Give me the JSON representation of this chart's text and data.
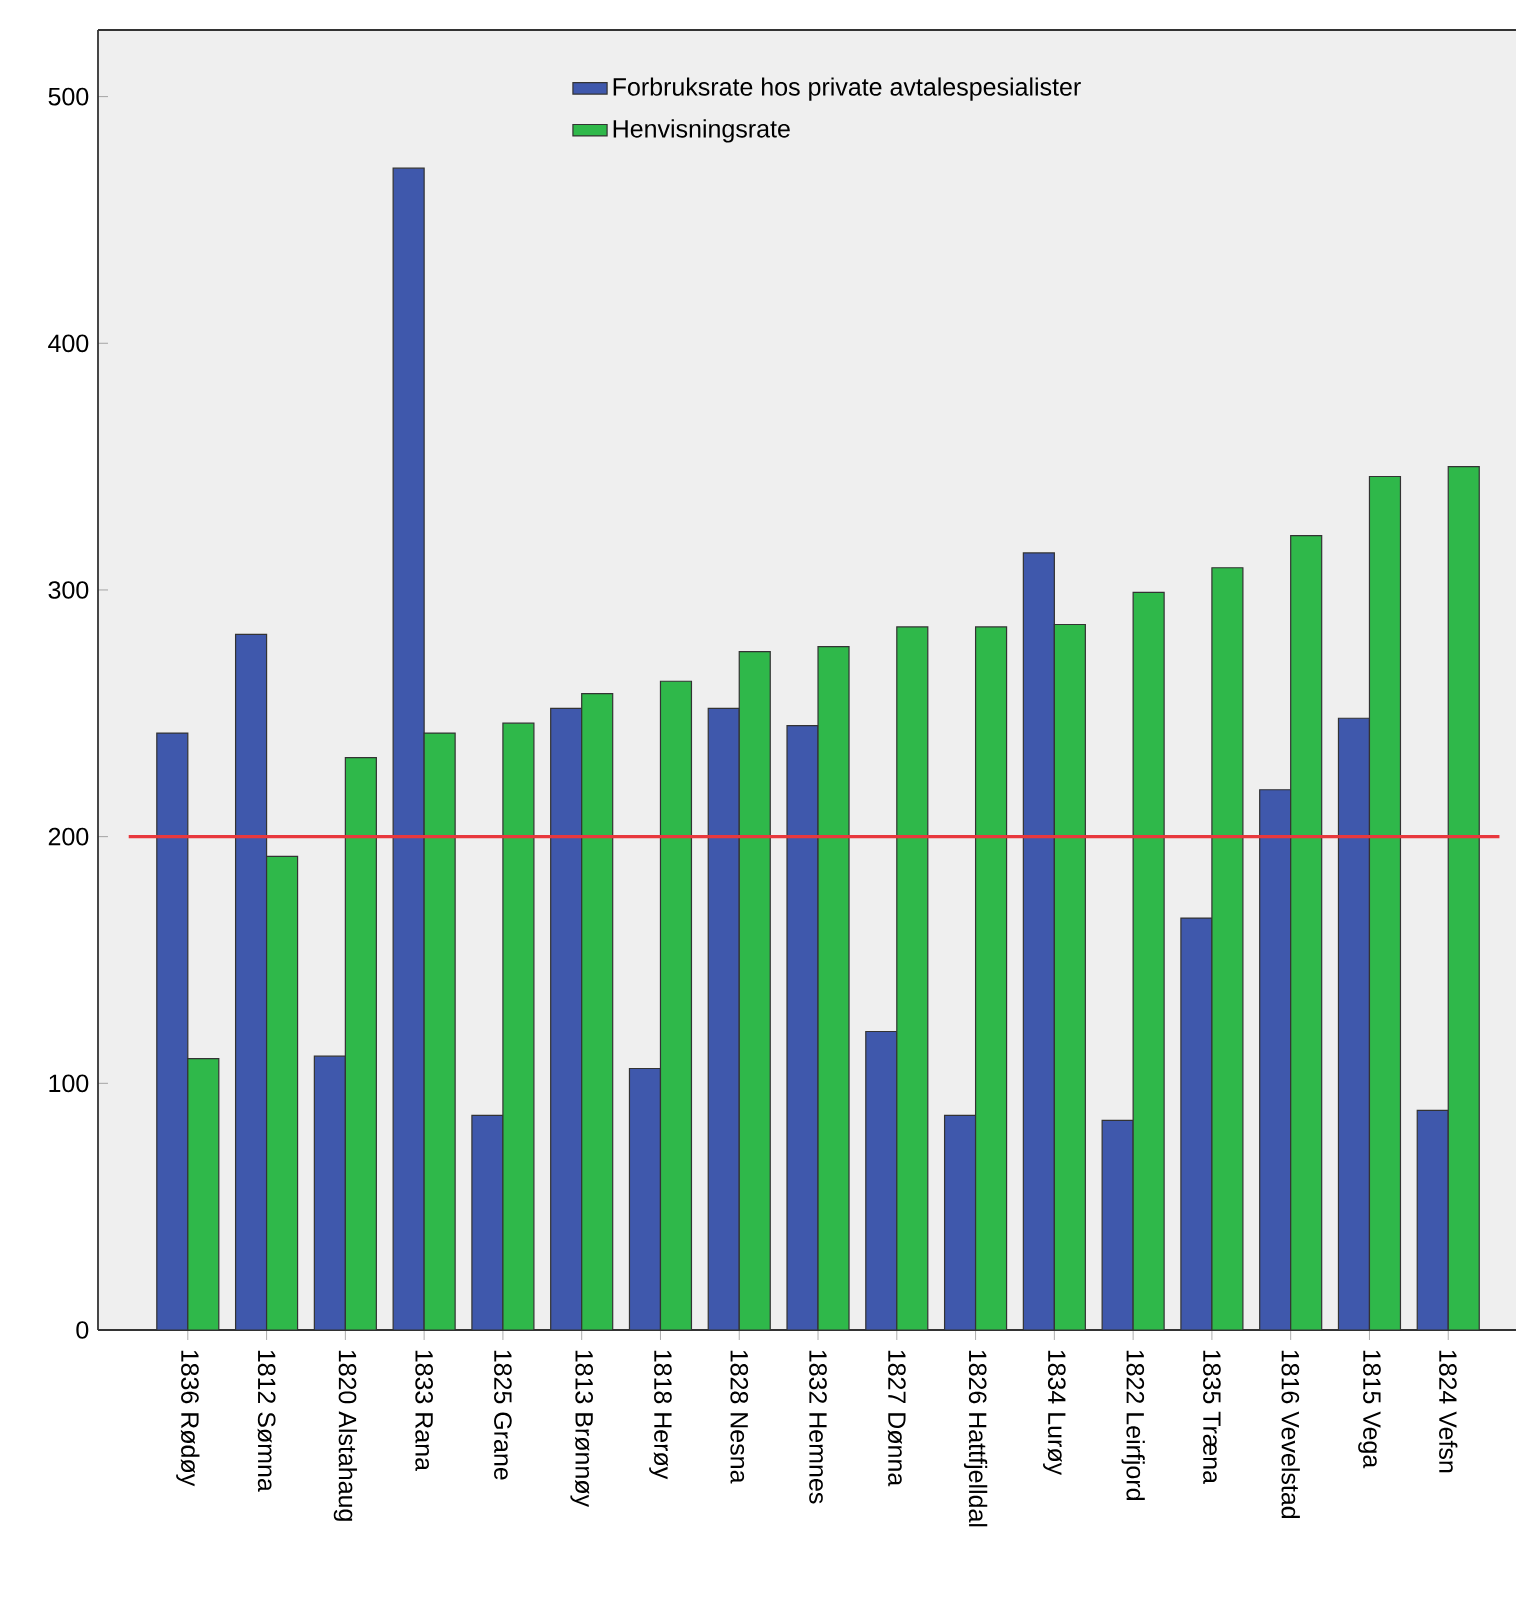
{
  "chart_data": {
    "type": "bar",
    "categories": [
      "1836 Rødøy",
      "1812 Sømna",
      "1820 Alstahaug",
      "1833 Rana",
      "1825 Grane",
      "1813 Brønnøy",
      "1818 Herøy",
      "1828 Nesna",
      "1832 Hemnes",
      "1827 Dønna",
      "1826 Hattfjelldal",
      "1834 Lurøy",
      "1822 Leirfjord",
      "1835 Træna",
      "1816 Vevelstad",
      "1815 Vega",
      "1824 Vefsn"
    ],
    "series": [
      {
        "name": "Forbruksrate hos private avtalespesialister",
        "color": "#3f58ac",
        "values": [
          242,
          282,
          111,
          471,
          87,
          252,
          106,
          252,
          245,
          121,
          87,
          315,
          85,
          167,
          219,
          248,
          89
        ]
      },
      {
        "name": "Henvisningsrate",
        "color": "#2fb84a",
        "values": [
          110,
          192,
          232,
          242,
          246,
          258,
          263,
          275,
          277,
          285,
          285,
          286,
          299,
          309,
          322,
          346,
          350
        ]
      }
    ],
    "ylim": [
      0,
      527
    ],
    "yticks": [
      0,
      100,
      200,
      300,
      400,
      500
    ],
    "ref_lines": [
      {
        "axis": "y",
        "value": 200,
        "color": "#e8383d"
      }
    ],
    "legend": "top right",
    "grid": false
  }
}
